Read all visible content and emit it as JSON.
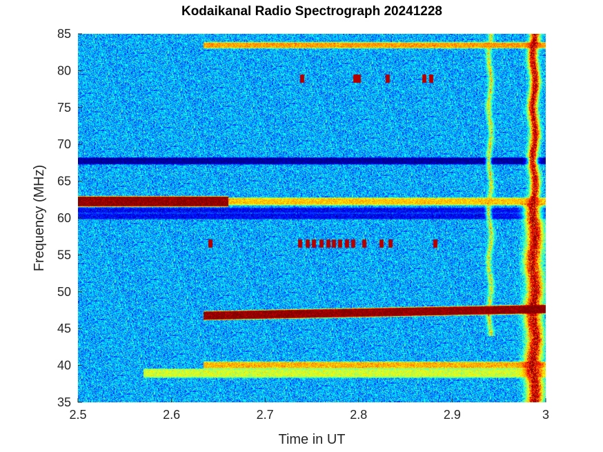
{
  "chart_data": {
    "type": "heatmap",
    "title": "Kodaikanal Radio Spectrograph  20241228",
    "xlabel": "Time in UT",
    "ylabel": "Frequency (MHz)",
    "xlim": [
      2.5,
      3.0
    ],
    "ylim": [
      35,
      85
    ],
    "xticks": [
      "2.5",
      "2.6",
      "2.7",
      "2.8",
      "2.9",
      "3"
    ],
    "yticks": [
      "35",
      "40",
      "45",
      "50",
      "55",
      "60",
      "65",
      "70",
      "75",
      "80",
      "85"
    ],
    "colormap": "jet",
    "background_intensity": 0.3,
    "features": [
      {
        "kind": "band",
        "freq": 62.3,
        "t_start": 2.5,
        "t_end": 2.661,
        "intensity": 1.0,
        "width": 0.6
      },
      {
        "kind": "band",
        "freq": 62.3,
        "t_start": 2.661,
        "t_end": 3.0,
        "intensity": 0.68,
        "width": 0.4
      },
      {
        "kind": "band",
        "freq": 83.5,
        "t_start": 2.634,
        "t_end": 3.0,
        "intensity": 0.72,
        "width": 0.3
      },
      {
        "kind": "band",
        "freq": 67.8,
        "t_start": 2.5,
        "t_end": 3.0,
        "intensity": 0.02,
        "width": 0.35
      },
      {
        "kind": "band",
        "freq": 60.3,
        "t_start": 2.5,
        "t_end": 3.0,
        "intensity": 0.12,
        "width": 0.3
      },
      {
        "kind": "band",
        "freq": 61.1,
        "t_start": 2.5,
        "t_end": 3.0,
        "intensity": 0.12,
        "width": 0.25
      },
      {
        "kind": "band",
        "freq": 40.1,
        "t_start": 2.634,
        "t_end": 3.0,
        "intensity": 0.7,
        "width": 0.35
      },
      {
        "kind": "band",
        "freq": 39.0,
        "t_start": 2.57,
        "t_end": 3.0,
        "intensity": 0.58,
        "width": 0.5
      },
      {
        "kind": "sweep",
        "t_start": 2.634,
        "t_end": 3.0,
        "freq_start": 46.8,
        "freq_end": 47.7,
        "intensity": 1.0,
        "width": 0.5
      },
      {
        "kind": "burst",
        "time": 2.987,
        "f_low": 35,
        "f_high": 85,
        "intensity": 0.95
      },
      {
        "kind": "burst",
        "time": 2.94,
        "f_low": 44,
        "f_high": 85,
        "intensity": 0.6
      },
      {
        "kind": "dots",
        "freq": 56.6,
        "times": [
          2.641,
          2.737,
          2.745,
          2.752,
          2.76,
          2.767,
          2.773,
          2.78,
          2.787,
          2.794,
          2.806,
          2.824,
          2.834,
          2.882
        ]
      },
      {
        "kind": "dots",
        "freq": 79.0,
        "times": [
          2.739,
          2.796,
          2.8,
          2.831,
          2.87,
          2.877
        ]
      }
    ]
  }
}
